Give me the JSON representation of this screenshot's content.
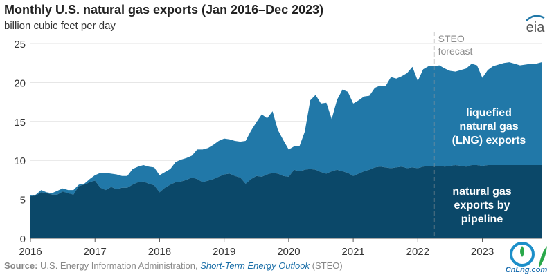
{
  "title": "Monthly U.S. natural gas exports (Jan 2016–Dec 2023)",
  "subtitle": "billion cubic feet per day",
  "source": {
    "label": "Source:",
    "text": "U.S. Energy Information Administration,",
    "publication": "Short-Term Energy Outlook",
    "suffix": "(STEO)"
  },
  "logo_text": "eia",
  "watermark_text": "CnLng.com",
  "colors": {
    "pipeline": "#0b4869",
    "lng": "#2178a8",
    "forecast_line": "#9a9a9a",
    "axis_text": "#333333",
    "label_text": "#ffffff"
  },
  "chart_data": {
    "type": "area",
    "stacked": true,
    "title": "Monthly U.S. natural gas exports (Jan 2016–Dec 2023)",
    "ylabel": "billion cubic feet per day",
    "xlabel": "",
    "ylim": [
      0,
      25
    ],
    "yticks": [
      "0",
      "5",
      "10",
      "15",
      "20",
      "25"
    ],
    "xticks": [
      "2016",
      "2017",
      "2018",
      "2019",
      "2020",
      "2021",
      "2022",
      "2023"
    ],
    "x_start": "2016-01",
    "x_end": "2023-12",
    "grid": "horizontal",
    "forecast_start": "2022-04",
    "forecast_label": [
      "STEO",
      "forecast"
    ],
    "series_labels": {
      "lng": [
        "liquefied",
        "natural gas",
        "(LNG) exports"
      ],
      "pipeline": [
        "natural gas",
        "exports by",
        "pipeline"
      ]
    },
    "series": [
      {
        "name": "natural gas exports by pipeline",
        "values": [
          5.4,
          5.5,
          5.9,
          5.8,
          5.6,
          5.6,
          6.0,
          5.8,
          5.6,
          6.7,
          6.9,
          7.2,
          7.4,
          6.5,
          6.2,
          6.6,
          6.3,
          6.5,
          6.5,
          6.9,
          7.2,
          7.3,
          7.0,
          6.8,
          5.9,
          6.5,
          6.9,
          7.2,
          7.3,
          7.5,
          7.8,
          7.6,
          7.2,
          7.4,
          7.6,
          7.9,
          8.2,
          8.3,
          8.0,
          7.8,
          7.0,
          7.6,
          8.0,
          7.9,
          8.2,
          8.4,
          8.3,
          8.0,
          7.9,
          8.8,
          8.6,
          8.8,
          8.9,
          8.8,
          8.5,
          8.3,
          8.6,
          8.8,
          8.6,
          8.4,
          8.0,
          8.3,
          8.6,
          8.8,
          9.1,
          9.2,
          9.1,
          9.0,
          9.1,
          9.2,
          9.0,
          9.1,
          9.0,
          9.2,
          9.3,
          9.2,
          9.3,
          9.2,
          9.3,
          9.4,
          9.3,
          9.2,
          9.4,
          9.4,
          9.3,
          9.4,
          9.4,
          9.4,
          9.4,
          9.4,
          9.4,
          9.4,
          9.4,
          9.4,
          9.4,
          9.4
        ]
      },
      {
        "name": "liquefied natural gas (LNG) exports",
        "values": [
          0.1,
          0.1,
          0.3,
          0.1,
          0.2,
          0.5,
          0.4,
          0.4,
          0.6,
          0.2,
          0.1,
          0.4,
          0.7,
          1.9,
          2.2,
          1.7,
          1.9,
          1.5,
          1.5,
          2.0,
          2.0,
          2.1,
          2.2,
          2.3,
          2.2,
          2.0,
          2.0,
          2.6,
          2.8,
          2.8,
          2.8,
          3.8,
          4.2,
          4.2,
          4.4,
          4.6,
          4.6,
          4.4,
          4.5,
          4.6,
          5.5,
          6.2,
          6.9,
          8.0,
          7.2,
          7.9,
          5.6,
          4.6,
          3.5,
          3.0,
          3.2,
          4.9,
          8.8,
          9.6,
          8.8,
          9.1,
          6.7,
          9.0,
          10.5,
          10.4,
          9.3,
          9.4,
          9.6,
          9.5,
          10.2,
          10.4,
          10.4,
          11.7,
          11.4,
          11.6,
          12.2,
          12.9,
          11.2,
          12.5,
          12.8,
          12.9,
          12.9,
          12.6,
          12.2,
          12.0,
          12.3,
          12.6,
          13.0,
          12.8,
          11.3,
          12.2,
          12.7,
          12.9,
          13.1,
          13.2,
          13.0,
          12.8,
          12.9,
          13.0,
          13.0,
          13.2
        ]
      }
    ]
  }
}
